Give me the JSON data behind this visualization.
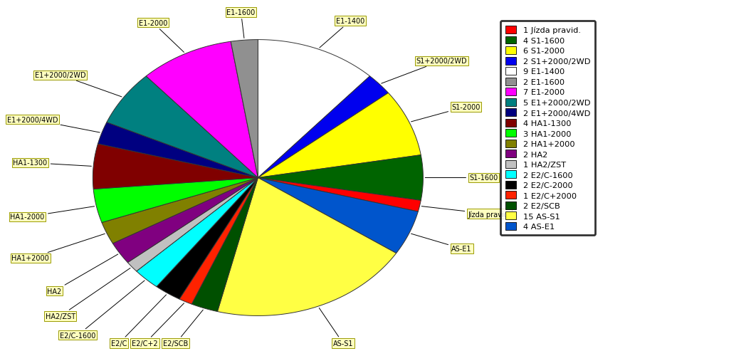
{
  "slices_ordered": [
    {
      "label": "E1-1400",
      "count": 9,
      "color": "#ffffff",
      "display": "E1-1400"
    },
    {
      "label": "S1+2000/2WD",
      "count": 2,
      "color": "#0000ee",
      "display": "S1+2000/2WD"
    },
    {
      "label": "S1-2000",
      "count": 6,
      "color": "#ffff00",
      "display": "S1-2000"
    },
    {
      "label": "S1-1600",
      "count": 4,
      "color": "#006400",
      "display": "S1-1600"
    },
    {
      "label": "Jízda pravid.",
      "count": 1,
      "color": "#ff0000",
      "display": "Jízda pravid."
    },
    {
      "label": "AS-E1",
      "count": 4,
      "color": "#0055cc",
      "display": "AS-E1"
    },
    {
      "label": "AS-S1",
      "count": 15,
      "color": "#ffff44",
      "display": "AS-S1"
    },
    {
      "label": "E2/SCB",
      "count": 2,
      "color": "#005000",
      "display": "E2/SCB"
    },
    {
      "label": "E2/C+2000",
      "count": 1,
      "color": "#ff2200",
      "display": "E2/C+2"
    },
    {
      "label": "E2/C-2000",
      "count": 2,
      "color": "#000000",
      "display": "E2/C"
    },
    {
      "label": "E2/C-1600",
      "count": 2,
      "color": "#00ffff",
      "display": "E2/C-1600"
    },
    {
      "label": "HA2/ZST",
      "count": 1,
      "color": "#c0c0c0",
      "display": "HA2/ZST"
    },
    {
      "label": "HA2",
      "count": 2,
      "color": "#800080",
      "display": "HA2"
    },
    {
      "label": "HA1+2000",
      "count": 2,
      "color": "#808000",
      "display": "HA1+2000"
    },
    {
      "label": "HA1-2000",
      "count": 3,
      "color": "#00ff00",
      "display": "HA1-2000"
    },
    {
      "label": "HA1-1300",
      "count": 4,
      "color": "#800000",
      "display": "HA1-1300"
    },
    {
      "label": "E1+2000/4WD",
      "count": 2,
      "color": "#000080",
      "display": "E1+2000/4WD"
    },
    {
      "label": "E1+2000/2WD",
      "count": 5,
      "color": "#008080",
      "display": "E1+2000/2WD"
    },
    {
      "label": "E1-2000",
      "count": 7,
      "color": "#ff00ff",
      "display": "E1-2000"
    },
    {
      "label": "E1-1600",
      "count": 2,
      "color": "#909090",
      "display": "E1-1600"
    }
  ],
  "legend_entries": [
    {
      "label": "1 Jízda pravid.",
      "color": "#ff0000"
    },
    {
      "label": "4 S1-1600",
      "color": "#006400"
    },
    {
      "label": "6 S1-2000",
      "color": "#ffff00"
    },
    {
      "label": "2 S1+2000/2WD",
      "color": "#0000ee"
    },
    {
      "label": "9 E1-1400",
      "color": "#ffffff"
    },
    {
      "label": "2 E1-1600",
      "color": "#909090"
    },
    {
      "label": "7 E1-2000",
      "color": "#ff00ff"
    },
    {
      "label": "5 E1+2000/2WD",
      "color": "#008080"
    },
    {
      "label": "2 E1+2000/4WD",
      "color": "#000080"
    },
    {
      "label": "4 HA1-1300",
      "color": "#800000"
    },
    {
      "label": "3 HA1-2000",
      "color": "#00ff00"
    },
    {
      "label": "2 HA1+2000",
      "color": "#808000"
    },
    {
      "label": "2 HA2",
      "color": "#800080"
    },
    {
      "label": "1 HA2/ZST",
      "color": "#c0c0c0"
    },
    {
      "label": "2 E2/C-1600",
      "color": "#00ffff"
    },
    {
      "label": "2 E2/C-2000",
      "color": "#000000"
    },
    {
      "label": "1 E2/C+2000",
      "color": "#ff2200"
    },
    {
      "label": "2 E2/SCB",
      "color": "#005000"
    },
    {
      "label": "15 AS-S1",
      "color": "#ffff44"
    },
    {
      "label": "4 AS-E1",
      "color": "#0055cc"
    }
  ],
  "background_color": "#ffffff",
  "figsize": [
    10.23,
    5.01
  ]
}
